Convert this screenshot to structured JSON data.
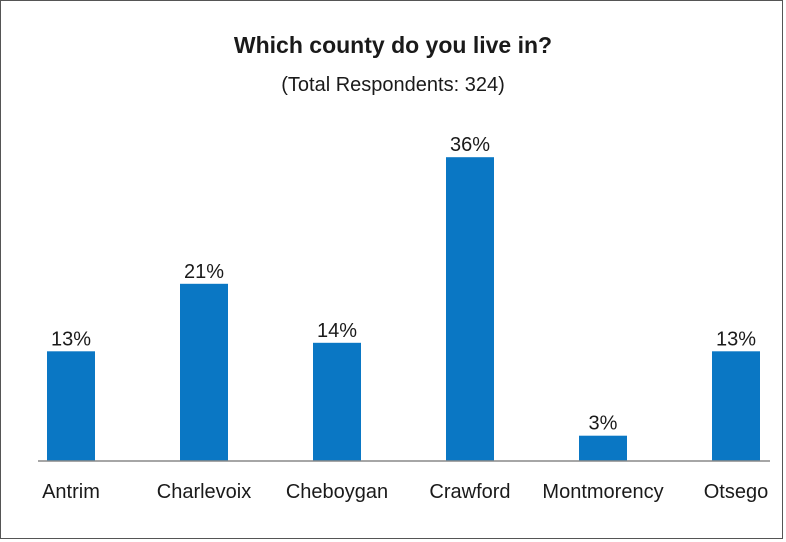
{
  "chart_data": {
    "type": "bar",
    "title": "Which county do you live in?",
    "subtitle": "(Total Respondents: 324)",
    "categories": [
      "Antrim",
      "Charlevoix",
      "Cheboygan",
      "Crawford",
      "Montmorency",
      "Otsego"
    ],
    "values": [
      13,
      21,
      14,
      36,
      3,
      13
    ],
    "value_labels": [
      "13%",
      "21%",
      "14%",
      "36%",
      "3%",
      "13%"
    ],
    "xlabel": "",
    "ylabel": "",
    "ylim": [
      0,
      40
    ],
    "grid": false,
    "legend": "none",
    "bar_color": "#0a77c4"
  }
}
